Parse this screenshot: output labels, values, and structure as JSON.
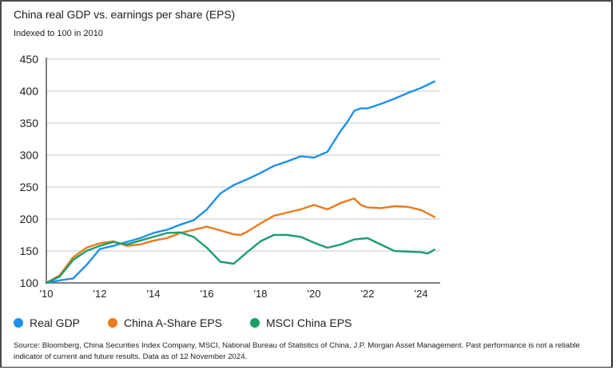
{
  "header": {
    "title": "China real GDP vs. earnings per share (EPS)",
    "subtitle": "Indexed to 100 in 2010"
  },
  "colors": {
    "real_gdp": "#1e90ee",
    "a_share": "#ee7a1b",
    "msci": "#1a9e6a",
    "grid": "#e2e2e2",
    "axis": "#555555"
  },
  "legend": [
    {
      "label": "Real GDP",
      "color": "#1e90ee"
    },
    {
      "label": "China A-Share EPS",
      "color": "#ee7a1b"
    },
    {
      "label": "MSCI China EPS",
      "color": "#1a9e6a"
    }
  ],
  "footer": {
    "source": "Source: Bloomberg, China Securities Index Company, MSCI, National Bureau of Statistics of China, J.P. Morgan Asset Management. Past performance is not a reliable indicator of current and future results. Data as of 12 November 2024."
  },
  "chart_data": {
    "type": "line",
    "title": "China real GDP vs. earnings per share (EPS)",
    "subtitle": "Indexed to 100 in 2010",
    "xlabel": "",
    "ylabel": "",
    "xlim": [
      2010,
      2025.2
    ],
    "ylim": [
      100,
      450
    ],
    "yticks": [
      100,
      150,
      200,
      250,
      300,
      350,
      400,
      450
    ],
    "ytick_labels": [
      "100",
      "150",
      "200",
      "250",
      "300",
      "350",
      "400",
      "450"
    ],
    "xticks": [
      2010,
      2012,
      2014,
      2016,
      2018,
      2020,
      2022,
      2024
    ],
    "xtick_labels": [
      "'10",
      "'12",
      "'14",
      "'16",
      "'18",
      "'20",
      "'22",
      "'24"
    ],
    "grid": "horizontal",
    "legend_position": "bottom-left",
    "series": [
      {
        "name": "Real GDP",
        "color": "#1e90ee",
        "x": [
          2010,
          2010.5,
          2011,
          2011.5,
          2012,
          2012.5,
          2013,
          2013.5,
          2014,
          2014.5,
          2015,
          2015.5,
          2016,
          2016.5,
          2017,
          2017.5,
          2018,
          2018.5,
          2019,
          2019.5,
          2020,
          2020.5,
          2021,
          2021.25,
          2021.5,
          2021.75,
          2022,
          2022.5,
          2023,
          2023.5,
          2024,
          2024.5
        ],
        "values": [
          100,
          104,
          107,
          128,
          153,
          158,
          164,
          170,
          178,
          183,
          191,
          198,
          215,
          240,
          253,
          262,
          272,
          283,
          290,
          298,
          296,
          305,
          338,
          352,
          369,
          373,
          373,
          380,
          388,
          397,
          405,
          415
        ]
      },
      {
        "name": "China A-Share EPS",
        "color": "#ee7a1b",
        "x": [
          2010,
          2010.5,
          2011,
          2011.5,
          2012,
          2012.5,
          2013,
          2013.5,
          2014,
          2014.5,
          2015,
          2015.5,
          2016,
          2016.5,
          2017,
          2017.25,
          2017.5,
          2018,
          2018.5,
          2019,
          2019.5,
          2020,
          2020.5,
          2021,
          2021.5,
          2021.75,
          2022,
          2022.5,
          2023,
          2023.5,
          2024,
          2024.5
        ],
        "values": [
          100,
          112,
          140,
          155,
          162,
          165,
          158,
          160,
          166,
          170,
          178,
          183,
          188,
          182,
          176,
          175,
          180,
          193,
          205,
          210,
          215,
          222,
          215,
          225,
          232,
          222,
          218,
          217,
          220,
          219,
          214,
          203
        ]
      },
      {
        "name": "MSCI China EPS",
        "color": "#1a9e6a",
        "x": [
          2010,
          2010.5,
          2011,
          2011.5,
          2012,
          2012.5,
          2013,
          2013.5,
          2014,
          2014.5,
          2015,
          2015.5,
          2016,
          2016.5,
          2017,
          2017.5,
          2018,
          2018.5,
          2019,
          2019.5,
          2020,
          2020.5,
          2021,
          2021.5,
          2022,
          2022.5,
          2023,
          2023.5,
          2024,
          2024.25,
          2024.5
        ],
        "values": [
          100,
          110,
          136,
          150,
          158,
          164,
          160,
          166,
          172,
          178,
          179,
          172,
          155,
          133,
          130,
          148,
          165,
          175,
          175,
          172,
          163,
          155,
          160,
          168,
          170,
          160,
          150,
          149,
          148,
          146,
          152
        ]
      }
    ]
  }
}
